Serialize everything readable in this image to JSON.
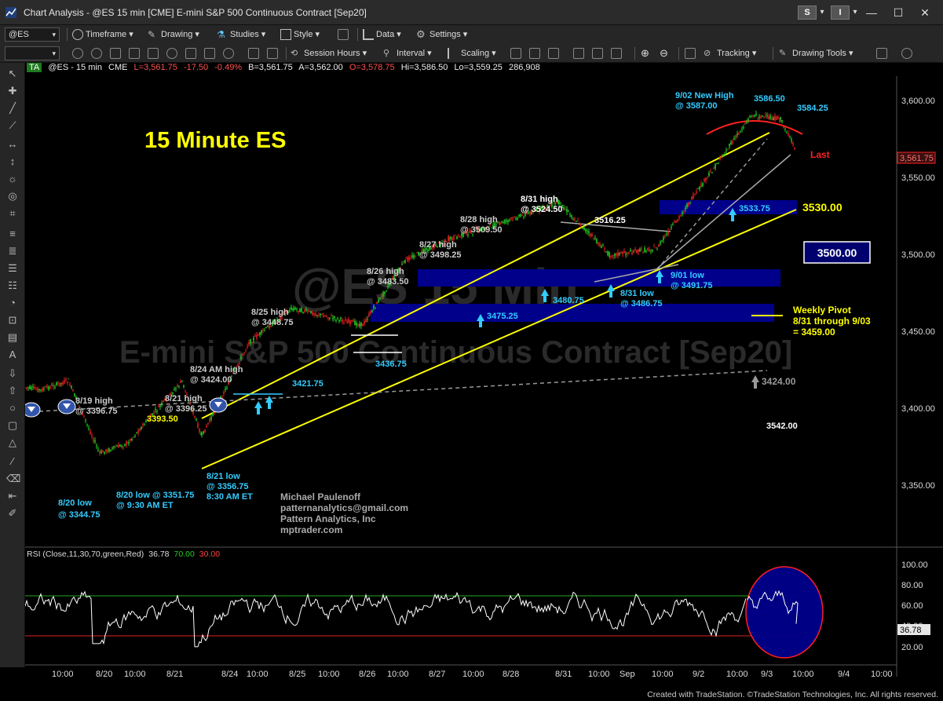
{
  "window": {
    "title": "Chart Analysis - @ES 15 min [CME] E-mini S&P 500 Continuous Contract [Sep20]",
    "s_button": "S",
    "i_button": "I"
  },
  "toolbar1": {
    "symbol": "@ES",
    "timeframe": "Timeframe",
    "drawing": "Drawing",
    "studies": "Studies",
    "style": "Style",
    "data": "Data",
    "settings": "Settings"
  },
  "toolbar2": {
    "session_hours": "Session Hours",
    "interval": "Interval",
    "scaling": "Scaling",
    "tracking": "Tracking",
    "drawing_tools": "Drawing Tools"
  },
  "infobar": {
    "badge": "TA",
    "symbol": "@ES - 15 min",
    "exchange": "CME",
    "last": "L=3,561.75",
    "change": "-17.50",
    "pct": "-0.49%",
    "bid": "B=3,561.75",
    "ask": "A=3,562.00",
    "open": "O=3,578.75",
    "high": "Hi=3,586.50",
    "low": "Lo=3,559.25",
    "volume": "286,908"
  },
  "colors": {
    "background": "#000000",
    "up_bar": "#22cc22",
    "down_bar": "#e02020",
    "channel": "#ffff00",
    "zone": "#00008b",
    "annotation_cyan": "#33ccff",
    "annotation_white": "#e6e6e6",
    "annotation_yellow": "#ffff00",
    "rsi_line": "#ffffff",
    "rsi_overbought": "#22aa22",
    "rsi_oversold": "#dd2222"
  },
  "watermark": {
    "symbol": "@ES 15 Min",
    "name": "E-mini S&P 500 Continuous Contract [Sep20]"
  },
  "chart_title": "15 Minute ES",
  "author": {
    "name": "Michael Paulenoff",
    "email": "patternanalytics@gmail.com",
    "company": "Pattern Analytics, Inc",
    "site": "mptrader.com"
  },
  "annotations": {
    "a819": [
      "8/19 high",
      "@ 3396.75"
    ],
    "a820low": [
      "8/20 low",
      "@ 3344.75"
    ],
    "a820low2": [
      "8/20 low @ 3351.75",
      "@ 9:30 AM ET"
    ],
    "a821high": [
      "8/21 high",
      "@ 3396.25"
    ],
    "a3393": "3393.50",
    "a821low": [
      "8/21 low",
      "@ 3356.75",
      "8:30 AM ET"
    ],
    "a824": [
      "8/24 AM high",
      "@ 3424.00"
    ],
    "a825": [
      "8/25 high",
      "@ 3448.75"
    ],
    "a3421": "3421.75",
    "a3436": "3436.75",
    "a826": [
      "8/26 high",
      "@ 3483.50"
    ],
    "a827": [
      "8/27 high",
      "@ 3498.25"
    ],
    "a828": [
      "8/28 high",
      "@ 3509.50"
    ],
    "a831high": [
      "8/31 high",
      "@ 3524.50"
    ],
    "a3475": "3475.25",
    "a3480": "3480.75",
    "a3516": "3516.25",
    "a831low": [
      "8/31 low",
      "@ 3486.75"
    ],
    "a901": [
      "9/01 low",
      "@ 3491.75"
    ],
    "a3533": "3533.75",
    "a902": [
      "9/02 New High",
      "@ 3587.00"
    ],
    "a3586": "3586.50",
    "a3584": "3584.25",
    "last": "Last",
    "a3530": "3530.00",
    "a3500": "3500.00",
    "pivot": [
      "Weekly Pivot",
      "8/31 through 9/03",
      "= 3459.00"
    ],
    "a3424": "3424.00",
    "a3542": "3542.00"
  },
  "price_axis": {
    "ticks": [
      "3,600.00",
      "3,550.00",
      "3,500.00",
      "3,450.00",
      "3,400.00",
      "3,350.00"
    ],
    "current": "3,561.75"
  },
  "rsi": {
    "label": "RSI (Close,11,30,70,green,Red)",
    "value": "36.78",
    "overbought": "70.00",
    "oversold": "30.00",
    "ticks": [
      "100.00",
      "80.00",
      "60.00",
      "40.00",
      "20.00"
    ],
    "current": "36.78"
  },
  "time_axis": [
    "10:00",
    "8/20",
    "10:00",
    "8/21",
    "8/24",
    "10:00",
    "8/25",
    "10:00",
    "8/26",
    "10:00",
    "8/27",
    "10:00",
    "8/28",
    "8/31",
    "10:00",
    "Sep",
    "10:00",
    "9/2",
    "10:00",
    "9/3",
    "10:00",
    "9/4",
    "10:00"
  ],
  "footer": "Created with TradeStation. ©TradeStation Technologies, Inc. All rights reserved.",
  "chart_data": {
    "type": "line",
    "title": "15 Minute ES",
    "instrument": "@ES - 15 min (E-mini S&P 500 Continuous Contract [Sep20])",
    "ylim": [
      3300,
      3615
    ],
    "x": [
      "8/19",
      "8/20",
      "8/20",
      "8/21",
      "8/21",
      "8/24",
      "8/25",
      "8/26",
      "8/26",
      "8/27",
      "8/28",
      "8/31",
      "8/31",
      "9/01",
      "9/02",
      "9/02",
      "9/03"
    ],
    "series": [
      {
        "values": [
          3396.75,
          3344.75,
          3351.75,
          3396.25,
          3356.75,
          3424.0,
          3448.75,
          3436.75,
          3483.5,
          3498.25,
          3509.5,
          3524.5,
          3486.75,
          3491.75,
          3587.0,
          3584.25,
          3561.75
        ]
      }
    ],
    "rsi_ylim": [
      0,
      100
    ],
    "rsi_last": 36.78
  }
}
